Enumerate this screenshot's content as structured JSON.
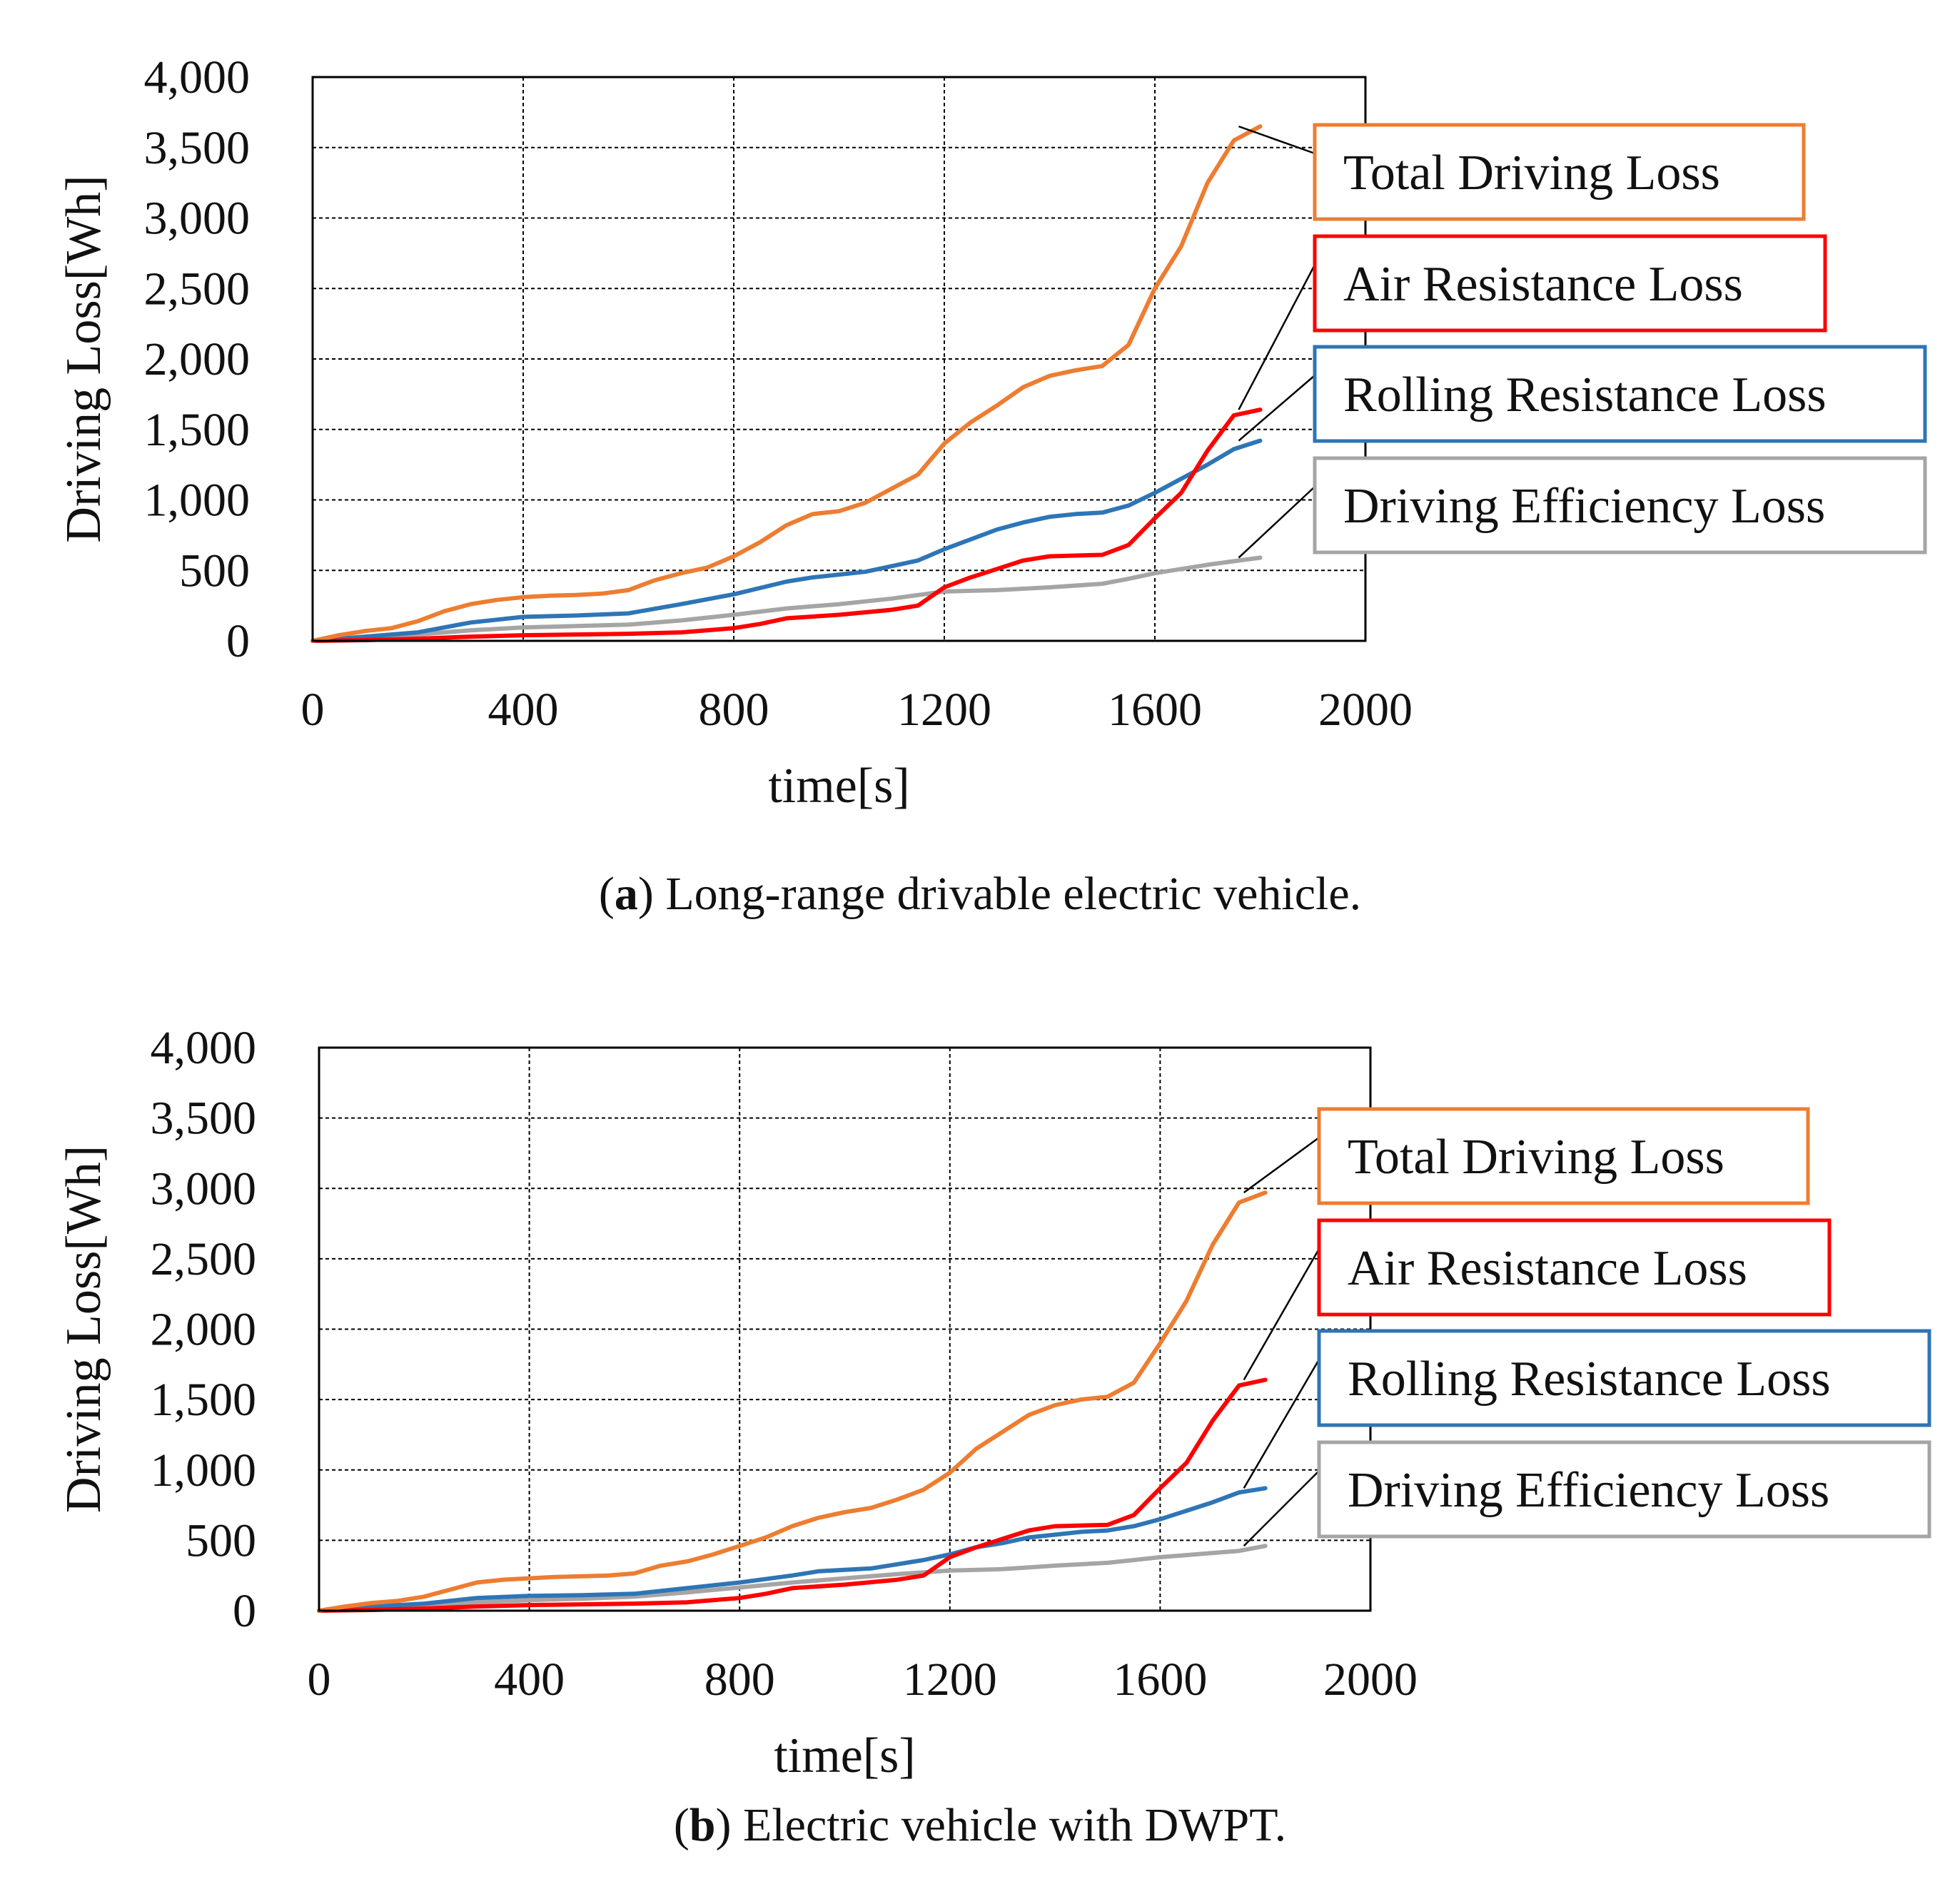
{
  "chart_data": [
    {
      "type": "line",
      "panel_label": "a",
      "caption_text": " Long-range drivable electric vehicle.",
      "xlabel": "time[s]",
      "ylabel": "Driving Loss[Wh]",
      "xlim": [
        0,
        2000
      ],
      "ylim": [
        0,
        4000
      ],
      "x_ticks": [
        0,
        400,
        800,
        1200,
        1600,
        2000
      ],
      "y_ticks": [
        0,
        500,
        1000,
        1500,
        2000,
        2500,
        3000,
        3500,
        4000
      ],
      "x_tick_labels": [
        "0",
        "400",
        "800",
        "1200",
        "1600",
        "2000"
      ],
      "y_tick_labels": [
        "0",
        "500",
        "1,000",
        "1,500",
        "2,000",
        "2,500",
        "3,000",
        "3,500",
        "4,000"
      ],
      "grid": true,
      "legend_placement": "right",
      "series": [
        {
          "name": "Total Driving Loss",
          "color": "#ED7D31",
          "x": [
            0,
            50,
            100,
            150,
            200,
            250,
            300,
            350,
            400,
            450,
            500,
            550,
            600,
            650,
            700,
            750,
            800,
            850,
            900,
            950,
            1000,
            1050,
            1100,
            1150,
            1200,
            1250,
            1300,
            1350,
            1400,
            1450,
            1500,
            1550,
            1600,
            1650,
            1700,
            1750,
            1800
          ],
          "values": [
            0,
            40,
            70,
            90,
            140,
            210,
            260,
            290,
            310,
            320,
            325,
            335,
            360,
            430,
            480,
            520,
            600,
            700,
            820,
            900,
            920,
            980,
            1080,
            1180,
            1400,
            1550,
            1670,
            1800,
            1880,
            1920,
            1950,
            2100,
            2500,
            2800,
            3250,
            3550,
            3650
          ]
        },
        {
          "name": "Air Resistance Loss",
          "color": "#FF0000",
          "x": [
            0,
            100,
            200,
            300,
            400,
            500,
            600,
            700,
            800,
            850,
            900,
            1000,
            1100,
            1150,
            1200,
            1250,
            1300,
            1350,
            1400,
            1500,
            1550,
            1600,
            1650,
            1700,
            1750,
            1800
          ],
          "values": [
            0,
            5,
            15,
            30,
            40,
            45,
            50,
            60,
            90,
            120,
            160,
            185,
            220,
            250,
            380,
            450,
            510,
            570,
            600,
            610,
            680,
            870,
            1050,
            1350,
            1600,
            1640
          ]
        },
        {
          "name": "Rolling Resistance Loss",
          "color": "#2E75B6",
          "x": [
            0,
            50,
            100,
            150,
            200,
            300,
            400,
            500,
            600,
            700,
            800,
            900,
            950,
            1000,
            1050,
            1100,
            1150,
            1200,
            1250,
            1300,
            1350,
            1400,
            1450,
            1500,
            1550,
            1600,
            1650,
            1700,
            1750,
            1800
          ],
          "values": [
            0,
            15,
            30,
            45,
            60,
            130,
            170,
            180,
            195,
            260,
            330,
            420,
            450,
            470,
            490,
            530,
            570,
            650,
            720,
            790,
            840,
            880,
            900,
            910,
            960,
            1050,
            1150,
            1250,
            1360,
            1420
          ]
        },
        {
          "name": "Driving Efficiency Loss",
          "color": "#A5A5A5",
          "x": [
            0,
            100,
            200,
            300,
            400,
            500,
            600,
            700,
            800,
            900,
            1000,
            1100,
            1200,
            1300,
            1400,
            1500,
            1550,
            1600,
            1650,
            1700,
            1750,
            1800
          ],
          "values": [
            0,
            20,
            45,
            75,
            95,
            105,
            115,
            145,
            185,
            230,
            260,
            300,
            350,
            360,
            380,
            405,
            440,
            480,
            510,
            540,
            565,
            590
          ]
        }
      ]
    },
    {
      "type": "line",
      "panel_label": "b",
      "caption_text": " Electric vehicle with DWPT.",
      "xlabel": "time[s]",
      "ylabel": "Driving Loss[Wh]",
      "xlim": [
        0,
        2000
      ],
      "ylim": [
        0,
        4000
      ],
      "x_ticks": [
        0,
        400,
        800,
        1200,
        1600,
        2000
      ],
      "y_ticks": [
        0,
        500,
        1000,
        1500,
        2000,
        2500,
        3000,
        3500,
        4000
      ],
      "x_tick_labels": [
        "0",
        "400",
        "800",
        "1200",
        "1600",
        "2000"
      ],
      "y_tick_labels": [
        "0",
        "500",
        "1,000",
        "1,500",
        "2,000",
        "2,500",
        "3,000",
        "3,500",
        "4,000"
      ],
      "grid": true,
      "legend_placement": "right",
      "series": [
        {
          "name": "Total Driving Loss",
          "color": "#ED7D31",
          "x": [
            0,
            50,
            100,
            150,
            200,
            250,
            300,
            350,
            400,
            450,
            500,
            550,
            600,
            650,
            700,
            750,
            800,
            850,
            900,
            950,
            1000,
            1050,
            1100,
            1150,
            1200,
            1250,
            1300,
            1350,
            1400,
            1450,
            1500,
            1550,
            1600,
            1650,
            1700,
            1750,
            1800
          ],
          "values": [
            0,
            30,
            55,
            70,
            100,
            150,
            200,
            220,
            230,
            240,
            245,
            250,
            265,
            320,
            350,
            400,
            460,
            520,
            600,
            660,
            700,
            730,
            790,
            860,
            980,
            1150,
            1270,
            1390,
            1460,
            1500,
            1520,
            1620,
            1900,
            2200,
            2600,
            2900,
            2970
          ]
        },
        {
          "name": "Air Resistance Loss",
          "color": "#FF0000",
          "x": [
            0,
            100,
            200,
            300,
            400,
            500,
            600,
            700,
            800,
            850,
            900,
            1000,
            1100,
            1150,
            1200,
            1250,
            1300,
            1350,
            1400,
            1500,
            1550,
            1600,
            1650,
            1700,
            1750,
            1800
          ],
          "values": [
            0,
            5,
            15,
            30,
            40,
            45,
            50,
            60,
            90,
            120,
            160,
            185,
            220,
            250,
            380,
            450,
            510,
            570,
            600,
            610,
            680,
            870,
            1050,
            1350,
            1600,
            1640
          ]
        },
        {
          "name": "Rolling Resistance Loss",
          "color": "#2E75B6",
          "x": [
            0,
            50,
            100,
            150,
            200,
            300,
            400,
            500,
            600,
            700,
            800,
            900,
            950,
            1000,
            1050,
            1100,
            1150,
            1200,
            1250,
            1300,
            1350,
            1400,
            1450,
            1500,
            1550,
            1600,
            1650,
            1700,
            1750,
            1800
          ],
          "values": [
            0,
            15,
            30,
            40,
            50,
            90,
            105,
            110,
            120,
            160,
            200,
            250,
            280,
            290,
            300,
            330,
            360,
            400,
            450,
            480,
            520,
            540,
            560,
            570,
            600,
            650,
            710,
            770,
            840,
            870
          ]
        },
        {
          "name": "Driving Efficiency Loss",
          "color": "#A5A5A5",
          "x": [
            0,
            100,
            200,
            300,
            400,
            500,
            600,
            700,
            800,
            900,
            1000,
            1100,
            1200,
            1300,
            1400,
            1500,
            1550,
            1600,
            1650,
            1700,
            1750,
            1800
          ],
          "values": [
            0,
            15,
            35,
            60,
            75,
            85,
            100,
            130,
            165,
            200,
            230,
            260,
            285,
            295,
            320,
            340,
            360,
            380,
            395,
            410,
            425,
            460
          ]
        }
      ]
    }
  ]
}
